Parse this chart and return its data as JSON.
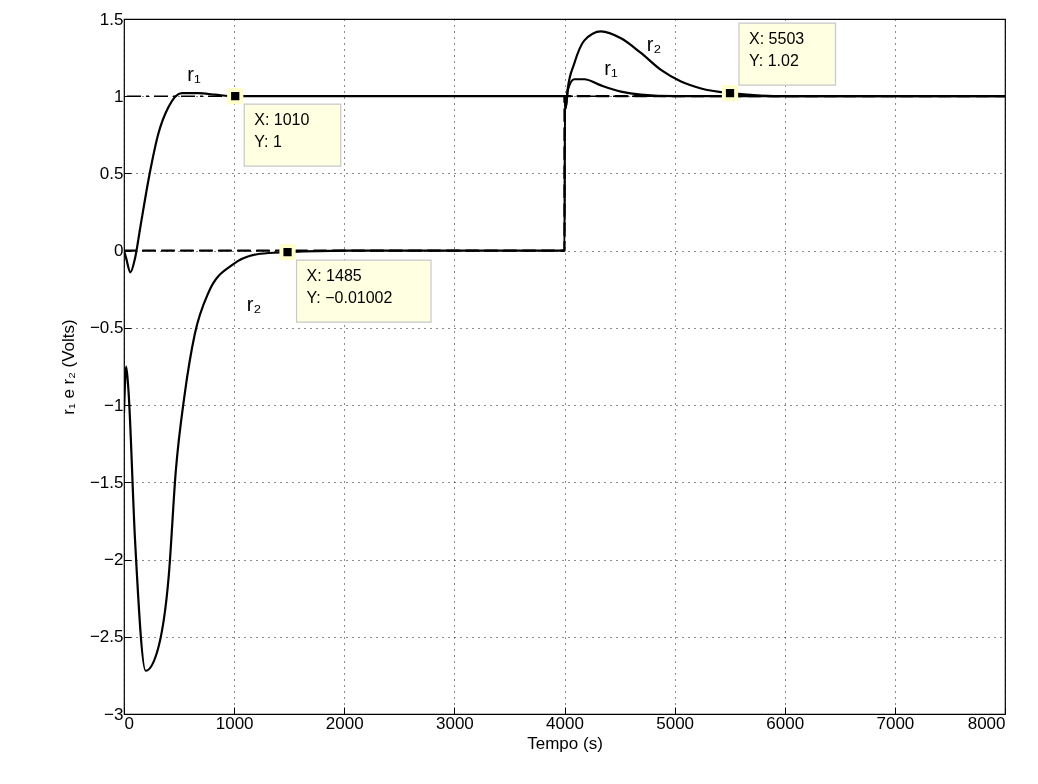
{
  "chart_data": {
    "type": "line",
    "xlabel": "Tempo (s)",
    "ylabel": "r₁ e r₂ (Volts)",
    "xlim": [
      0,
      8000
    ],
    "xticks": [
      0,
      1000,
      2000,
      3000,
      4000,
      5000,
      6000,
      7000,
      8000
    ],
    "ylim": [
      -3,
      1.5
    ],
    "yticks": [
      {
        "value": -3,
        "label": "−3"
      },
      {
        "value": -2.5,
        "label": "−2.5"
      },
      {
        "value": -2,
        "label": "−2"
      },
      {
        "value": -1.5,
        "label": "−1.5"
      },
      {
        "value": -1,
        "label": "−1"
      },
      {
        "value": -0.5,
        "label": "−0.5"
      },
      0,
      0.5,
      1,
      1.5
    ],
    "grid": true,
    "series": [
      {
        "color": "#000000",
        "line_style": "solid",
        "x": [
          0,
          20,
          58,
          100,
          149,
          228,
          313,
          404,
          524,
          676,
          827,
          1010,
          2000,
          3990,
          4000,
          4010,
          4030,
          4088,
          4179,
          4331,
          4513,
          4694,
          5000,
          6000,
          8000
        ],
        "values": [
          0,
          -0.05,
          -0.14,
          -0.05,
          0.155,
          0.48,
          0.76,
          0.93,
          1.02,
          1.02,
          1.01,
          1,
          1,
          1,
          1,
          0.92,
          1.04,
          1.11,
          1.11,
          1.07,
          1.03,
          1.01,
          1,
          1,
          1
        ]
      },
      {
        "color": "#000000",
        "line_style": "solid",
        "x": [
          0,
          20,
          40,
          100,
          197,
          300,
          407,
          470,
          549,
          643,
          768,
          987,
          1238,
          1485,
          2000,
          4000,
          4004,
          4010,
          4030,
          4088,
          4179,
          4331,
          4513,
          4694,
          4876,
          5058,
          5240,
          5503,
          6000,
          8000
        ],
        "values": [
          -1.05,
          -0.75,
          -0.9,
          -1.87,
          -2.72,
          -2.6,
          -2.1,
          -1.43,
          -0.94,
          -0.54,
          -0.27,
          -0.09,
          -0.02,
          -0.01,
          0,
          0,
          0.95,
          0.92,
          1.05,
          1.21,
          1.36,
          1.42,
          1.375,
          1.28,
          1.17,
          1.095,
          1.05,
          1.02,
          1,
          1
        ]
      },
      {
        "color": "#000000",
        "line_style": "dashed",
        "x": [
          0,
          4000,
          4000,
          8000
        ],
        "values": [
          0,
          0,
          1,
          1
        ]
      }
    ],
    "annotations": [
      {
        "text": "X: 1010\nY: 1",
        "x": 1010,
        "y": 1
      },
      {
        "text": "X: 1485\nY: −0.01002",
        "x": 1485,
        "y": -0.01002
      },
      {
        "text": "X: 5503\nY: 1.02",
        "x": 5503,
        "y": 1.02
      },
      "r₁",
      "r₂",
      "r₁",
      "r₂"
    ],
    "ref_lines": [
      {
        "axis": "y",
        "value": 1,
        "line_style": "dashed",
        "color": "#000000"
      }
    ]
  }
}
